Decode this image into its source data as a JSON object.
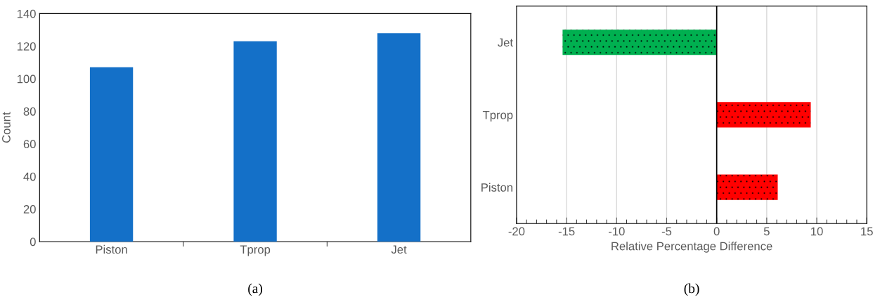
{
  "chart_data": [
    {
      "type": "bar",
      "categories": [
        "Piston",
        "Tprop",
        "Jet"
      ],
      "values": [
        107,
        123,
        128
      ],
      "color": "#1470c8",
      "ylabel": "Count",
      "ylim": [
        0,
        140
      ],
      "yticks": [
        0,
        20,
        40,
        60,
        80,
        100,
        120,
        140
      ],
      "grid": false,
      "annotations": [
        "(a)"
      ]
    },
    {
      "type": "bar",
      "orientation": "horizontal",
      "categories": [
        "Jet",
        "Tprop",
        "Piston"
      ],
      "values": [
        -15.4,
        9.4,
        6.1
      ],
      "colors": [
        "#00b050",
        "#ff0000",
        "#ff0000"
      ],
      "xlabel": "Relative Percentage Difference",
      "xlim": [
        -20,
        15
      ],
      "xticks": [
        -20,
        -15,
        -10,
        -5,
        0,
        5,
        10,
        15
      ],
      "grid": "x",
      "annotations": [
        "(b)"
      ]
    }
  ]
}
